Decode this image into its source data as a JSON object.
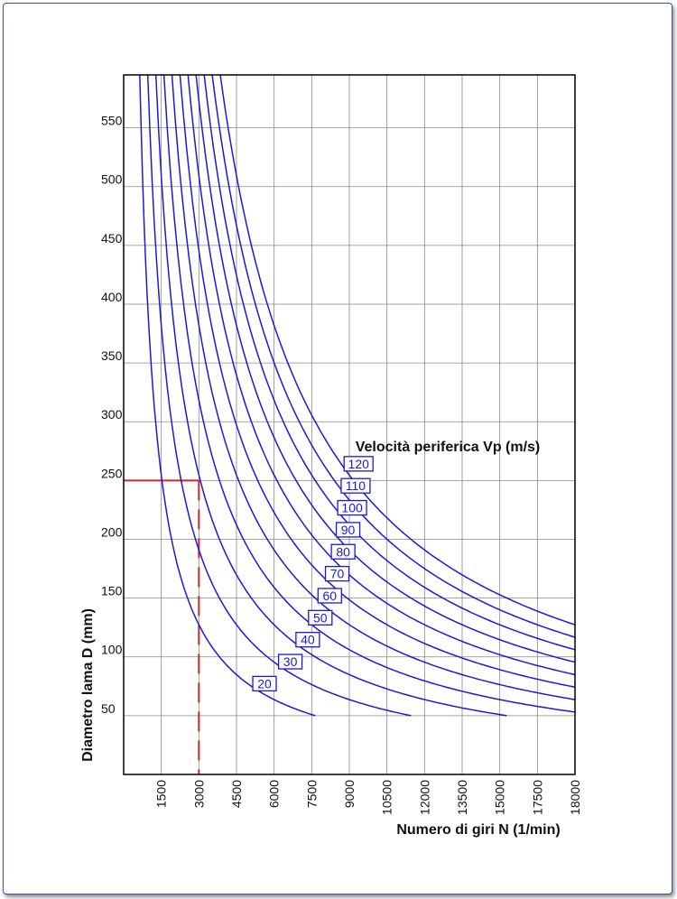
{
  "chart_data": {
    "type": "line",
    "title": "",
    "xlabel": "Numero di giri N (1/min)",
    "ylabel": "Diametro lama D (mm)",
    "legend_title": "Velocità periferica Vp (m/s)",
    "xlim": [
      0,
      18000
    ],
    "ylim": [
      0,
      595
    ],
    "x_ticks": [
      "1500",
      "3000",
      "4500",
      "6000",
      "7500",
      "9000",
      "10500",
      "12000",
      "13500",
      "15000",
      "17500",
      "18000"
    ],
    "y_ticks": [
      "50",
      "100",
      "150",
      "200",
      "250",
      "300",
      "350",
      "400",
      "450",
      "500",
      "550"
    ],
    "grid": true,
    "series_color": "#1a1ad6",
    "formula": "D = 60000 * Vp / (pi * N)",
    "series": [
      {
        "name": "20",
        "vp": 20
      },
      {
        "name": "30",
        "vp": 30
      },
      {
        "name": "40",
        "vp": 40
      },
      {
        "name": "50",
        "vp": 50
      },
      {
        "name": "60",
        "vp": 60
      },
      {
        "name": "70",
        "vp": 70
      },
      {
        "name": "80",
        "vp": 80
      },
      {
        "name": "90",
        "vp": 90
      },
      {
        "name": "100",
        "vp": 100
      },
      {
        "name": "110",
        "vp": 110
      },
      {
        "name": "120",
        "vp": 120
      }
    ],
    "reference_example": {
      "D": 250,
      "N": 3000,
      "color": "#e02020"
    }
  }
}
